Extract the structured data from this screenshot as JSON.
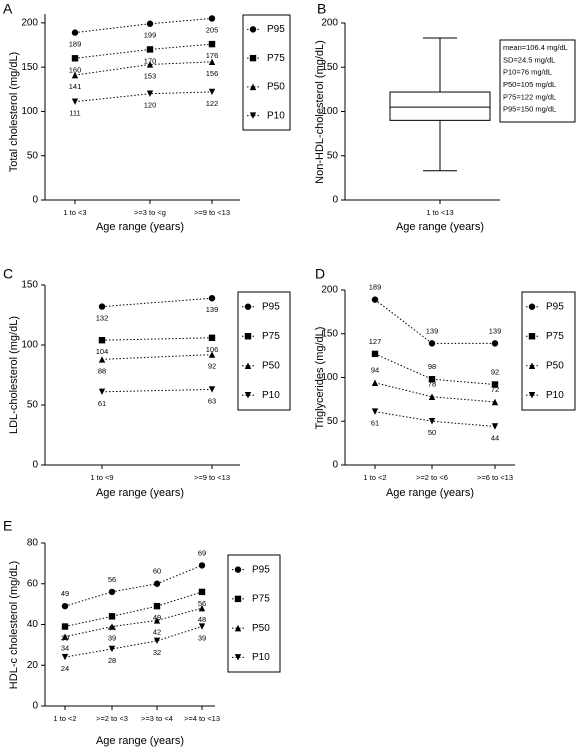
{
  "chart_data": [
    {
      "type": "line",
      "panel": "A",
      "ylabel": "Total cholesterol (mg/dL)",
      "xlabel": "Age range (years)",
      "categories": [
        "1 to <3",
        ">=3 to <g",
        ">=9 to <13"
      ],
      "ylim": [
        0,
        210
      ],
      "yticks": [
        0,
        50,
        100,
        150,
        200
      ],
      "series": [
        {
          "name": "P95",
          "color": "#000000",
          "values": [
            189,
            199,
            205
          ]
        },
        {
          "name": "P75",
          "color": "#000000",
          "values": [
            160,
            170,
            176
          ]
        },
        {
          "name": "P50",
          "color": "#000000",
          "values": [
            141,
            153,
            156
          ]
        },
        {
          "name": "P10",
          "color": "#000000",
          "values": [
            111,
            120,
            122
          ]
        }
      ]
    },
    {
      "type": "box",
      "panel": "B",
      "ylabel": "Non-HDL-cholesterol (mg/dL)",
      "xlabel": "Age range (years)",
      "categories": [
        "1 to <13"
      ],
      "ylim": [
        0,
        200
      ],
      "yticks": [
        0,
        50,
        100,
        150,
        200
      ],
      "boxes": [
        {
          "whislo": 33,
          "q1": 90,
          "med": 105,
          "q3": 122,
          "whishi": 183
        }
      ],
      "stats": [
        "mean=106.4 mg/dL",
        "SD=24.5 mg/dL",
        "P10=76 mg/dL",
        "P50=105 mg/dL",
        "P75=122 mg/dL",
        "P95=150 mg/dL"
      ]
    },
    {
      "type": "line",
      "panel": "C",
      "ylabel": "LDL-cholesterol (mg/dL)",
      "xlabel": "Age range (years)",
      "categories": [
        "1 to <9",
        ">=9 to <13"
      ],
      "ylim": [
        0,
        150
      ],
      "yticks": [
        0,
        50,
        100,
        150
      ],
      "series": [
        {
          "name": "P95",
          "color": "#000000",
          "values": [
            132,
            139
          ]
        },
        {
          "name": "P75",
          "color": "#000000",
          "values": [
            104,
            106
          ]
        },
        {
          "name": "P50",
          "color": "#000000",
          "values": [
            88,
            92
          ]
        },
        {
          "name": "P10",
          "color": "#000000",
          "values": [
            61,
            63
          ]
        }
      ]
    },
    {
      "type": "line",
      "panel": "D",
      "ylabel": "Triglycerides (mg/dL)",
      "xlabel": "Age range (years)",
      "categories": [
        "1 to <2",
        ">=2 to <6",
        ">=6 to <13"
      ],
      "ylim": [
        0,
        200
      ],
      "yticks": [
        0,
        50,
        100,
        150,
        200
      ],
      "series": [
        {
          "name": "P95",
          "color": "#000000",
          "values": [
            189,
            139,
            139
          ]
        },
        {
          "name": "P75",
          "color": "#000000",
          "values": [
            127,
            98,
            92
          ]
        },
        {
          "name": "P50",
          "color": "#000000",
          "values": [
            94,
            78,
            72
          ]
        },
        {
          "name": "P10",
          "color": "#000000",
          "values": [
            61,
            50,
            44
          ]
        }
      ]
    },
    {
      "type": "line",
      "panel": "E",
      "ylabel": "HDL-c cholesterol (mg/dL)",
      "xlabel": "Age range (years)",
      "categories": [
        "1 to <2",
        ">=2 to <3",
        ">=3 to <4",
        ">=4 to <13"
      ],
      "ylim": [
        0,
        80
      ],
      "yticks": [
        0,
        20,
        40,
        60,
        80
      ],
      "series": [
        {
          "name": "P95",
          "color": "#000000",
          "values": [
            49,
            56,
            60,
            69
          ]
        },
        {
          "name": "P75",
          "color": "#000000",
          "values": [
            39,
            44,
            49,
            56
          ]
        },
        {
          "name": "P50",
          "color": "#000000",
          "values": [
            34,
            39,
            42,
            48
          ]
        },
        {
          "name": "P10",
          "color": "#000000",
          "values": [
            24,
            28,
            32,
            39
          ]
        }
      ]
    }
  ]
}
